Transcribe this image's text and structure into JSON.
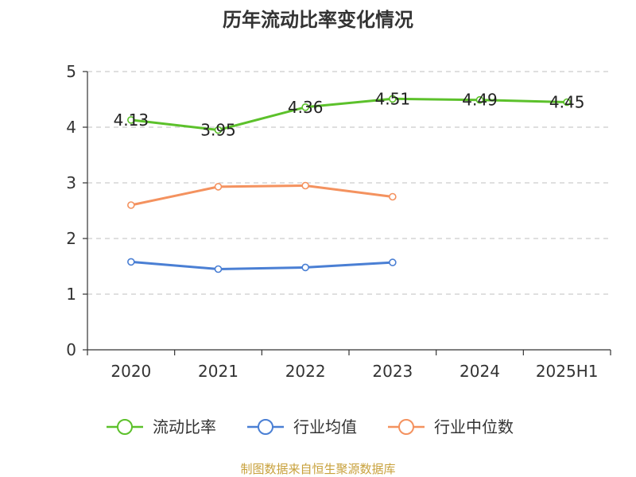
{
  "chart_data": {
    "type": "line",
    "title": "历年流动比率变化情况",
    "categories": [
      "2020",
      "2021",
      "2022",
      "2023",
      "2024",
      "2025H1"
    ],
    "ylim": [
      0,
      5
    ],
    "yticks": [
      "0",
      "1",
      "2",
      "3",
      "4",
      "5"
    ],
    "grid": true,
    "legend_position": "bottom",
    "series": [
      {
        "name": "流动比率",
        "color": "#5cc12b",
        "values": [
          4.13,
          3.95,
          4.36,
          4.51,
          4.49,
          4.45
        ],
        "labels": [
          "4.13",
          "3.95",
          "4.36",
          "4.51",
          "4.49",
          "4.45"
        ]
      },
      {
        "name": "行业均值",
        "color": "#4a7fd4",
        "values": [
          1.58,
          1.45,
          1.48,
          1.57,
          null,
          null
        ]
      },
      {
        "name": "行业中位数",
        "color": "#f4925f",
        "values": [
          2.6,
          2.93,
          2.95,
          2.75,
          null,
          null
        ]
      }
    ]
  },
  "source_text": "制图数据来自恒生聚源数据库"
}
